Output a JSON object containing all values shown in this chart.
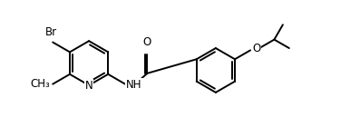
{
  "bg_color": "#ffffff",
  "atom_color": "#000000",
  "bond_color": "#000000",
  "line_width": 1.4,
  "font_size": 8.5,
  "fig_width": 3.97,
  "fig_height": 1.51,
  "xlim": [
    0,
    10
  ],
  "ylim": [
    0,
    3.8
  ]
}
